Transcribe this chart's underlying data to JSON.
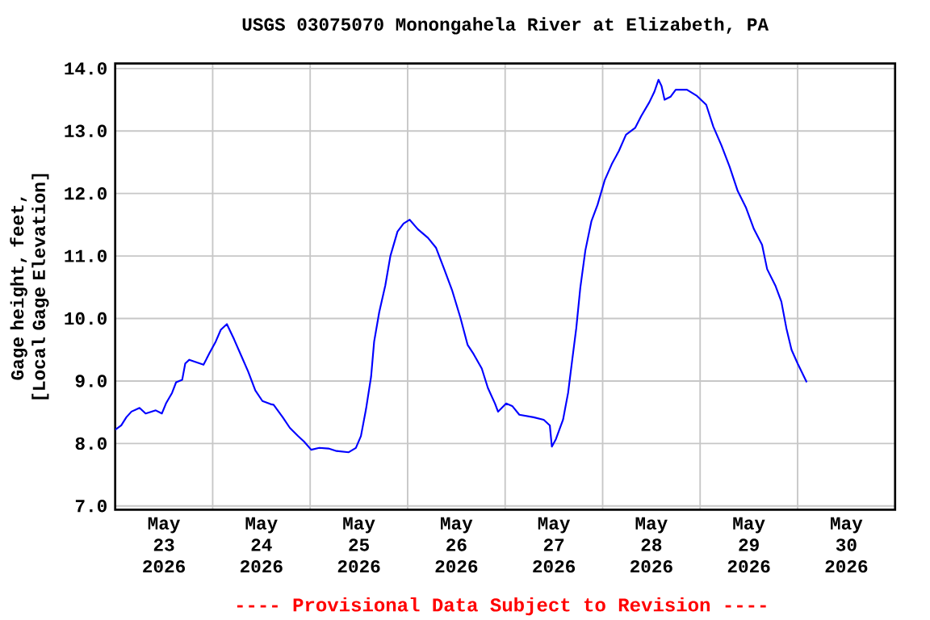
{
  "chart_data": {
    "type": "line",
    "title": "USGS 03075070 Monongahela River at Elizabeth, PA",
    "ylabel": "Gage height, feet, [Local Gage Elevation]",
    "annotations": [
      "---- Provisional Data Subject to Revision ----"
    ],
    "xlim": [
      "2026-05-23T00:00",
      "2026-05-31T00:00"
    ],
    "xticks": [
      {
        "value": "2026-05-23T12:00",
        "label": "May 23 2026"
      },
      {
        "value": "2026-05-24T12:00",
        "label": "May 24 2026"
      },
      {
        "value": "2026-05-25T12:00",
        "label": "May 25 2026"
      },
      {
        "value": "2026-05-26T12:00",
        "label": "May 26 2026"
      },
      {
        "value": "2026-05-27T12:00",
        "label": "May 27 2026"
      },
      {
        "value": "2026-05-28T12:00",
        "label": "May 28 2026"
      },
      {
        "value": "2026-05-29T12:00",
        "label": "May 29 2026"
      },
      {
        "value": "2026-05-30T12:00",
        "label": "May 30 2026"
      },
      {
        "value": "2026-05-24T00:00",
        "label": null
      },
      {
        "value": "2026-05-25T00:00",
        "label": null
      },
      {
        "value": "2026-05-26T00:00",
        "label": null
      },
      {
        "value": "2026-05-27T00:00",
        "label": null
      },
      {
        "value": "2026-05-28T00:00",
        "label": null
      },
      {
        "value": "2026-05-29T00:00",
        "label": null
      },
      {
        "value": "2026-05-30T00:00",
        "label": null
      }
    ],
    "ylim": [
      6.94,
      14.08
    ],
    "yticks": [
      {
        "value": 7,
        "label": "7.0"
      },
      {
        "value": 8,
        "label": "8.0"
      },
      {
        "value": 9,
        "label": "9.0"
      },
      {
        "value": 10,
        "label": "10.0"
      },
      {
        "value": 11,
        "label": "11.0"
      },
      {
        "value": 12,
        "label": "12.0"
      },
      {
        "value": 13,
        "label": "13.0"
      },
      {
        "value": 14,
        "label": "14.0"
      }
    ],
    "grid": true,
    "marker": "none",
    "line_style": "solid",
    "series": [
      {
        "color": "#0000ff",
        "x": [
          "2026-05-23T00:00",
          "2026-05-23T01:30",
          "2026-05-23T02:45",
          "2026-05-23T04:00",
          "2026-05-23T06:00",
          "2026-05-23T07:30",
          "2026-05-23T10:00",
          "2026-05-23T11:30",
          "2026-05-23T12:30",
          "2026-05-23T14:00",
          "2026-05-23T15:00",
          "2026-05-23T16:30",
          "2026-05-23T17:15",
          "2026-05-23T18:15",
          "2026-05-23T20:00",
          "2026-05-23T21:45",
          "2026-05-23T23:15",
          "2026-05-24T00:45",
          "2026-05-24T02:00",
          "2026-05-24T03:30",
          "2026-05-24T05:15",
          "2026-05-24T07:00",
          "2026-05-24T08:45",
          "2026-05-24T10:30",
          "2026-05-24T12:15",
          "2026-05-24T14:15",
          "2026-05-24T15:00",
          "2026-05-24T17:15",
          "2026-05-24T19:00",
          "2026-05-24T21:00",
          "2026-05-24T22:30",
          "2026-05-25T00:15",
          "2026-05-25T02:15",
          "2026-05-25T04:30",
          "2026-05-25T06:30",
          "2026-05-25T09:30",
          "2026-05-25T11:15",
          "2026-05-25T12:30",
          "2026-05-25T13:45",
          "2026-05-25T15:00",
          "2026-05-25T15:45",
          "2026-05-25T17:00",
          "2026-05-25T18:30",
          "2026-05-25T19:45",
          "2026-05-25T21:30",
          "2026-05-25T23:00",
          "2026-05-26T00:30",
          "2026-05-26T02:30",
          "2026-05-26T05:00",
          "2026-05-26T07:00",
          "2026-05-26T09:00",
          "2026-05-26T11:00",
          "2026-05-26T13:00",
          "2026-05-26T14:45",
          "2026-05-26T16:15",
          "2026-05-26T18:15",
          "2026-05-26T19:45",
          "2026-05-26T21:30",
          "2026-05-26T22:15",
          "2026-05-27T00:15",
          "2026-05-27T01:45",
          "2026-05-27T03:30",
          "2026-05-27T07:00",
          "2026-05-27T09:30",
          "2026-05-27T11:00",
          "2026-05-27T11:30",
          "2026-05-27T12:30",
          "2026-05-27T14:15",
          "2026-05-27T15:30",
          "2026-05-27T16:30",
          "2026-05-27T17:30",
          "2026-05-27T18:30",
          "2026-05-27T19:45",
          "2026-05-27T21:15",
          "2026-05-27T22:45",
          "2026-05-28T00:30",
          "2026-05-28T02:15",
          "2026-05-28T04:00",
          "2026-05-28T05:45",
          "2026-05-28T08:00",
          "2026-05-28T09:30",
          "2026-05-28T11:30",
          "2026-05-28T12:45",
          "2026-05-28T13:45",
          "2026-05-28T14:30",
          "2026-05-28T15:15",
          "2026-05-28T16:45",
          "2026-05-28T18:00",
          "2026-05-28T20:45",
          "2026-05-28T23:15",
          "2026-05-29T01:30",
          "2026-05-29T03:15",
          "2026-05-29T05:15",
          "2026-05-29T07:15",
          "2026-05-29T09:15",
          "2026-05-29T11:15",
          "2026-05-29T13:15",
          "2026-05-29T15:15",
          "2026-05-29T16:30",
          "2026-05-29T18:30",
          "2026-05-29T20:00",
          "2026-05-29T21:15",
          "2026-05-29T22:30",
          "2026-05-30T00:00",
          "2026-05-30T02:15"
        ],
        "values": [
          8.22,
          8.29,
          8.42,
          8.51,
          8.57,
          8.48,
          8.53,
          8.48,
          8.64,
          8.81,
          8.98,
          9.02,
          9.28,
          9.34,
          9.3,
          9.26,
          9.45,
          9.63,
          9.82,
          9.91,
          9.67,
          9.41,
          9.15,
          8.85,
          8.68,
          8.63,
          8.62,
          8.42,
          8.25,
          8.12,
          8.03,
          7.9,
          7.93,
          7.92,
          7.88,
          7.86,
          7.93,
          8.12,
          8.55,
          9.07,
          9.63,
          10.1,
          10.53,
          11.0,
          11.39,
          11.52,
          11.58,
          11.43,
          11.29,
          11.13,
          10.79,
          10.44,
          10.01,
          9.58,
          9.43,
          9.2,
          8.89,
          8.64,
          8.51,
          8.64,
          8.6,
          8.46,
          8.42,
          8.38,
          8.29,
          7.95,
          8.07,
          8.38,
          8.81,
          9.33,
          9.84,
          10.49,
          11.09,
          11.56,
          11.82,
          12.21,
          12.47,
          12.68,
          12.94,
          13.05,
          13.24,
          13.46,
          13.63,
          13.82,
          13.72,
          13.5,
          13.55,
          13.66,
          13.66,
          13.56,
          13.42,
          13.07,
          12.77,
          12.43,
          12.04,
          11.78,
          11.43,
          11.18,
          10.79,
          10.53,
          10.27,
          9.84,
          9.5,
          9.28,
          8.98
        ]
      }
    ]
  }
}
